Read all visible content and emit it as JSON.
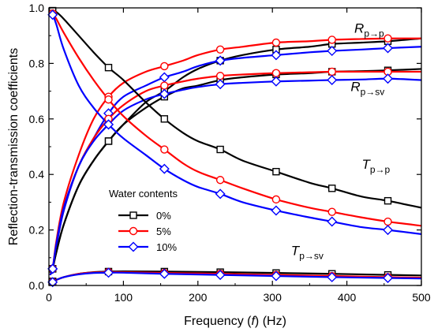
{
  "chart_data": {
    "type": "line",
    "xlabel": "Frequency (f) (Hz)",
    "xlabel_parts": [
      "Frequency (",
      "f",
      ") (Hz)"
    ],
    "ylabel": "Reflection-transmission coefficients",
    "xlim": [
      0,
      500
    ],
    "ylim": [
      0,
      1.0
    ],
    "xticks": [
      0,
      100,
      200,
      300,
      400,
      500
    ],
    "yticks": [
      0.0,
      0.2,
      0.4,
      0.6,
      0.8,
      1.0
    ],
    "ytick_labels": [
      "0.0",
      "0.2",
      "0.4",
      "0.6",
      "0.8",
      "1.0"
    ],
    "grid": false,
    "legend": {
      "title": "Water contents",
      "placement": "lower-left",
      "entries": [
        {
          "label": "0%",
          "color": "#000000",
          "marker": "square"
        },
        {
          "label": "5%",
          "color": "#ff0000",
          "marker": "circle"
        },
        {
          "label": "10%",
          "color": "#0000ff",
          "marker": "diamond"
        }
      ]
    },
    "annotations": [
      {
        "main": "R",
        "sub": "p→p",
        "x": 410,
        "y": 0.91
      },
      {
        "main": "R",
        "sub": "p→sv",
        "x": 405,
        "y": 0.7
      },
      {
        "main": "T",
        "sub": "p→p",
        "x": 420,
        "y": 0.42
      },
      {
        "main": "T",
        "sub": "p→sv",
        "x": 325,
        "y": 0.11
      }
    ],
    "marker_x": [
      5,
      80,
      155,
      230,
      305,
      380,
      455
    ],
    "groups": [
      {
        "name": "Rp→p",
        "series": [
          {
            "name": "0%",
            "color": "#000000",
            "marker": "square",
            "x": [
              2,
              5,
              10,
              20,
              40,
              60,
              80,
              100,
              130,
              155,
              180,
              200,
              230,
              260,
              305,
              350,
              380,
              420,
              455,
              500
            ],
            "y": [
              0.04,
              0.06,
              0.12,
              0.22,
              0.36,
              0.45,
              0.52,
              0.58,
              0.66,
              0.7,
              0.75,
              0.78,
              0.81,
              0.83,
              0.85,
              0.86,
              0.87,
              0.875,
              0.88,
              0.89
            ]
          },
          {
            "name": "5%",
            "color": "#ff0000",
            "marker": "circle",
            "x": [
              2,
              5,
              10,
              20,
              40,
              60,
              80,
              100,
              130,
              155,
              180,
              200,
              230,
              260,
              305,
              350,
              380,
              420,
              455,
              500
            ],
            "y": [
              0.04,
              0.06,
              0.16,
              0.3,
              0.47,
              0.6,
              0.68,
              0.73,
              0.77,
              0.79,
              0.81,
              0.83,
              0.85,
              0.86,
              0.875,
              0.88,
              0.885,
              0.888,
              0.89,
              0.89
            ]
          },
          {
            "name": "10%",
            "color": "#0000ff",
            "marker": "diamond",
            "x": [
              2,
              5,
              10,
              20,
              40,
              60,
              80,
              100,
              130,
              155,
              180,
              200,
              230,
              260,
              305,
              350,
              380,
              420,
              455,
              500
            ],
            "y": [
              0.04,
              0.06,
              0.14,
              0.27,
              0.43,
              0.53,
              0.62,
              0.68,
              0.72,
              0.75,
              0.77,
              0.79,
              0.81,
              0.82,
              0.83,
              0.84,
              0.845,
              0.85,
              0.855,
              0.86
            ]
          }
        ]
      },
      {
        "name": "Rp→sv",
        "series": [
          {
            "name": "0%",
            "color": "#000000",
            "marker": "square",
            "x": [
              2,
              5,
              10,
              20,
              40,
              60,
              80,
              100,
              130,
              155,
              180,
              200,
              230,
              260,
              305,
              350,
              380,
              420,
              455,
              500
            ],
            "y": [
              0.04,
              0.06,
              0.12,
              0.22,
              0.36,
              0.45,
              0.52,
              0.58,
              0.64,
              0.68,
              0.71,
              0.72,
              0.74,
              0.75,
              0.76,
              0.765,
              0.77,
              0.772,
              0.775,
              0.78
            ]
          },
          {
            "name": "5%",
            "color": "#ff0000",
            "marker": "circle",
            "x": [
              2,
              5,
              10,
              20,
              40,
              60,
              80,
              100,
              130,
              155,
              180,
              200,
              230,
              260,
              305,
              350,
              380,
              420,
              455,
              500
            ],
            "y": [
              0.04,
              0.06,
              0.15,
              0.28,
              0.43,
              0.53,
              0.6,
              0.65,
              0.7,
              0.72,
              0.735,
              0.745,
              0.755,
              0.76,
              0.765,
              0.768,
              0.77,
              0.77,
              0.77,
              0.77
            ]
          },
          {
            "name": "10%",
            "color": "#0000ff",
            "marker": "diamond",
            "x": [
              2,
              5,
              10,
              20,
              40,
              60,
              80,
              100,
              130,
              155,
              180,
              200,
              230,
              260,
              305,
              350,
              380,
              420,
              455,
              500
            ],
            "y": [
              0.04,
              0.06,
              0.15,
              0.28,
              0.43,
              0.52,
              0.58,
              0.63,
              0.67,
              0.69,
              0.705,
              0.715,
              0.725,
              0.73,
              0.735,
              0.738,
              0.74,
              0.742,
              0.745,
              0.74
            ]
          }
        ]
      },
      {
        "name": "Tp→p",
        "series": [
          {
            "name": "0%",
            "color": "#000000",
            "marker": "square",
            "x": [
              2,
              5,
              10,
              20,
              40,
              60,
              80,
              100,
              130,
              155,
              180,
              200,
              230,
              260,
              305,
              350,
              380,
              420,
              455,
              500
            ],
            "y": [
              0.99,
              0.99,
              0.985,
              0.96,
              0.9,
              0.84,
              0.785,
              0.74,
              0.66,
              0.6,
              0.55,
              0.52,
              0.49,
              0.45,
              0.41,
              0.37,
              0.35,
              0.32,
              0.305,
              0.28
            ]
          },
          {
            "name": "5%",
            "color": "#ff0000",
            "marker": "circle",
            "x": [
              2,
              5,
              10,
              20,
              40,
              60,
              80,
              100,
              130,
              155,
              180,
              200,
              230,
              260,
              305,
              350,
              380,
              420,
              455,
              500
            ],
            "y": [
              0.99,
              0.98,
              0.96,
              0.91,
              0.82,
              0.74,
              0.67,
              0.61,
              0.54,
              0.49,
              0.44,
              0.41,
              0.38,
              0.35,
              0.31,
              0.28,
              0.265,
              0.245,
              0.23,
              0.215
            ]
          },
          {
            "name": "10%",
            "color": "#0000ff",
            "marker": "diamond",
            "x": [
              2,
              5,
              10,
              20,
              40,
              60,
              80,
              100,
              130,
              155,
              180,
              200,
              230,
              260,
              305,
              350,
              380,
              420,
              455,
              500
            ],
            "y": [
              0.98,
              0.975,
              0.94,
              0.85,
              0.72,
              0.64,
              0.58,
              0.53,
              0.47,
              0.42,
              0.38,
              0.355,
              0.33,
              0.3,
              0.27,
              0.245,
              0.23,
              0.21,
              0.2,
              0.185
            ]
          }
        ]
      },
      {
        "name": "Tp→sv",
        "series": [
          {
            "name": "0%",
            "color": "#000000",
            "marker": "square",
            "x": [
              2,
              5,
              10,
              20,
              40,
              60,
              80,
              100,
              155,
              230,
              305,
              380,
              455,
              500
            ],
            "y": [
              0.01,
              0.015,
              0.02,
              0.03,
              0.042,
              0.048,
              0.05,
              0.051,
              0.05,
              0.048,
              0.045,
              0.042,
              0.038,
              0.036
            ]
          },
          {
            "name": "5%",
            "color": "#ff0000",
            "marker": "circle",
            "x": [
              2,
              5,
              10,
              20,
              40,
              60,
              80,
              100,
              155,
              230,
              305,
              380,
              455,
              500
            ],
            "y": [
              0.01,
              0.013,
              0.02,
              0.03,
              0.042,
              0.047,
              0.048,
              0.048,
              0.045,
              0.042,
              0.038,
              0.034,
              0.03,
              0.028
            ]
          },
          {
            "name": "10%",
            "color": "#0000ff",
            "marker": "diamond",
            "x": [
              2,
              5,
              10,
              20,
              40,
              60,
              80,
              100,
              155,
              230,
              305,
              380,
              455,
              500
            ],
            "y": [
              0.01,
              0.012,
              0.02,
              0.03,
              0.04,
              0.045,
              0.046,
              0.046,
              0.042,
              0.038,
              0.034,
              0.03,
              0.027,
              0.025
            ]
          }
        ]
      }
    ]
  }
}
